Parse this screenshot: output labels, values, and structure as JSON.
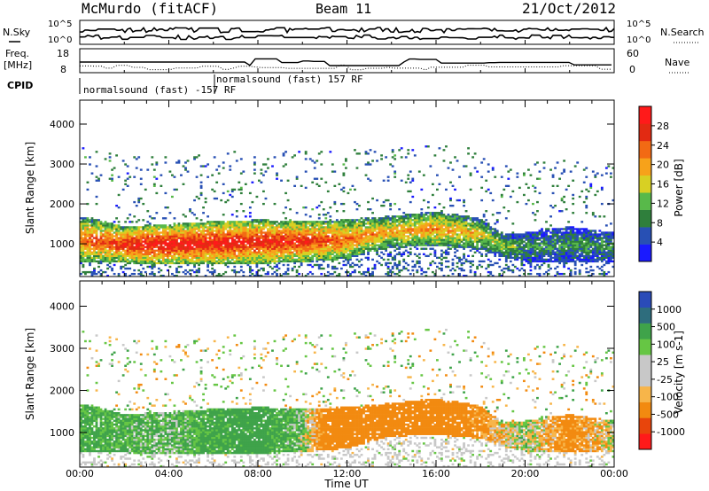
{
  "header": {
    "station": "McMurdo (fitACF)",
    "beam": "Beam 11",
    "date": "21/Oct/2012"
  },
  "top_panels": {
    "nsky_label": "N.Sky",
    "nsearch_label": "N.Search",
    "noise_ticks_left": [
      "10^5",
      "10^0"
    ],
    "noise_ticks_right": [
      "10^5",
      "10^0"
    ],
    "freq_label_line1": "Freq.",
    "freq_label_line2": "[MHz]",
    "freq_ticks": [
      "18",
      "8"
    ],
    "nave_label": "Nave",
    "nave_ticks": [
      "60",
      "0"
    ],
    "cpid_label": "CPID",
    "cpid_text_1": "normalsound (fast) 157 RF",
    "cpid_text_2": "normalsound (fast) -157 RF"
  },
  "colors": {
    "power_scale": [
      "#1a1aff",
      "#2850b4",
      "#2f7f3c",
      "#58b94a",
      "#d8d023",
      "#f7a21a",
      "#f26a14",
      "#e22a12",
      "#ff1a1a"
    ],
    "velocity_scale": [
      "#ff1a1a",
      "#e8450c",
      "#f28a10",
      "#f7b54a",
      "#c8c8c8",
      "#c8c8c8",
      "#66c644",
      "#3fa34a",
      "#2e6d7d",
      "#2a4bb8"
    ],
    "ground_scatter": "#a9a9a9"
  },
  "chart_data": [
    {
      "type": "heatmap",
      "name": "power",
      "xlabel": "Time UT",
      "ylabel": "Slant Range [km]",
      "colorbar_label": "Power [dB]",
      "colorbar_ticks": [
        "28",
        "24",
        "20",
        "16",
        "12",
        "8",
        "4"
      ],
      "x_ticks": [
        "00:00",
        "04:00",
        "08:00",
        "12:00",
        "16:00",
        "20:00",
        "00:00"
      ],
      "y_ticks": [
        "4000",
        "3000",
        "2000",
        "1000"
      ],
      "xlim_hours": [
        0,
        24
      ],
      "ylim_km": [
        180,
        4600
      ],
      "band_lower_km": [
        [
          0,
          600
        ],
        [
          2,
          560
        ],
        [
          4,
          520
        ],
        [
          6,
          510
        ],
        [
          8,
          540
        ],
        [
          10,
          580
        ],
        [
          12,
          660
        ],
        [
          13,
          820
        ],
        [
          14,
          950
        ],
        [
          16,
          980
        ],
        [
          18,
          900
        ],
        [
          19,
          700
        ],
        [
          20,
          600
        ],
        [
          22,
          580
        ],
        [
          24,
          600
        ]
      ],
      "band_upper_km": [
        [
          0,
          1600
        ],
        [
          1,
          1500
        ],
        [
          2,
          1350
        ],
        [
          4,
          1420
        ],
        [
          6,
          1480
        ],
        [
          8,
          1520
        ],
        [
          10,
          1500
        ],
        [
          12,
          1520
        ],
        [
          14,
          1620
        ],
        [
          16,
          1720
        ],
        [
          17,
          1650
        ],
        [
          18,
          1550
        ],
        [
          19,
          1150
        ],
        [
          20,
          1200
        ],
        [
          22,
          1350
        ],
        [
          24,
          1200
        ]
      ],
      "core_max_db": [
        [
          0,
          24
        ],
        [
          3,
          30
        ],
        [
          6,
          30
        ],
        [
          10,
          28
        ],
        [
          12,
          24
        ],
        [
          14,
          20
        ],
        [
          16,
          22
        ],
        [
          18,
          18
        ],
        [
          20,
          10
        ],
        [
          24,
          10
        ]
      ]
    },
    {
      "type": "heatmap",
      "name": "velocity",
      "xlabel": "Time UT",
      "ylabel": "Slant Range [km]",
      "colorbar_label": "Velocity [m s-1]",
      "colorbar_ticks": [
        "1000",
        "500",
        "100",
        "25",
        "-25",
        "-100",
        "-500",
        "-1000"
      ],
      "x_ticks": [
        "00:00",
        "04:00",
        "08:00",
        "12:00",
        "16:00",
        "20:00",
        "00:00"
      ],
      "y_ticks": [
        "4000",
        "3000",
        "2000",
        "1000"
      ],
      "xlim_hours": [
        0,
        24
      ],
      "ylim_km": [
        180,
        4600
      ],
      "dominant_velocity_ms": [
        [
          0,
          150
        ],
        [
          2,
          120
        ],
        [
          4,
          80
        ],
        [
          6,
          160
        ],
        [
          8,
          200
        ],
        [
          10,
          60
        ],
        [
          11,
          -200
        ],
        [
          14,
          -350
        ],
        [
          16,
          -300
        ],
        [
          18,
          -150
        ],
        [
          20,
          50
        ],
        [
          22,
          -200
        ],
        [
          24,
          30
        ]
      ]
    }
  ]
}
